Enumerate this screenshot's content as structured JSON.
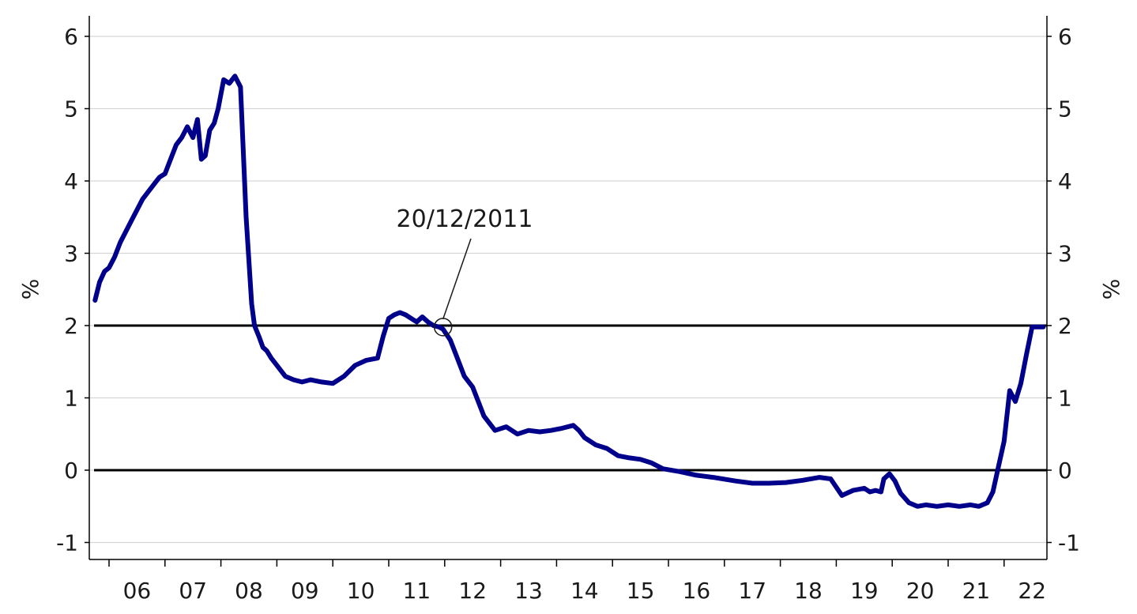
{
  "chart_data": {
    "type": "line",
    "xlabel": "",
    "ylabel_left": "%",
    "ylabel_right": "%",
    "ylim": [
      -1.2,
      6.2
    ],
    "yticks": [
      -1,
      0,
      1,
      2,
      3,
      4,
      5,
      6
    ],
    "xlim": [
      2005.65,
      2022.85
    ],
    "x_tick_labels": [
      "06",
      "07",
      "08",
      "09",
      "10",
      "11",
      "12",
      "13",
      "14",
      "15",
      "16",
      "17",
      "18",
      "19",
      "20",
      "21",
      "22"
    ],
    "grid": true,
    "reference_lines": [
      0,
      2
    ],
    "line_color": "#00008b",
    "annotation": {
      "label": "20/12/2011",
      "x": 2011.97,
      "y": 1.98
    },
    "series": [
      {
        "x": [
          2005.75,
          2005.83,
          2005.92,
          2006.0,
          2006.1,
          2006.2,
          2006.3,
          2006.4,
          2006.5,
          2006.6,
          2006.7,
          2006.8,
          2006.9,
          2007.0,
          2007.1,
          2007.2,
          2007.3,
          2007.4,
          2007.5,
          2007.58,
          2007.65,
          2007.72,
          2007.8,
          2007.88,
          2007.95,
          2008.05,
          2008.15,
          2008.25,
          2008.35,
          2008.45,
          2008.55,
          2008.6,
          2008.68,
          2008.75,
          2008.82,
          2008.9,
          2009.0,
          2009.15,
          2009.3,
          2009.45,
          2009.6,
          2009.8,
          2010.0,
          2010.2,
          2010.4,
          2010.6,
          2010.8,
          2010.9,
          2011.0,
          2011.1,
          2011.2,
          2011.3,
          2011.4,
          2011.5,
          2011.6,
          2011.7,
          2011.8,
          2011.9,
          2011.97,
          2012.1,
          2012.2,
          2012.35,
          2012.5,
          2012.7,
          2012.9,
          2013.1,
          2013.3,
          2013.5,
          2013.7,
          2013.9,
          2014.1,
          2014.3,
          2014.4,
          2014.5,
          2014.7,
          2014.9,
          2015.1,
          2015.3,
          2015.5,
          2015.7,
          2015.9,
          2016.2,
          2016.5,
          2016.8,
          2017.2,
          2017.5,
          2017.8,
          2018.1,
          2018.4,
          2018.7,
          2018.9,
          2019.1,
          2019.3,
          2019.5,
          2019.6,
          2019.7,
          2019.8,
          2019.85,
          2019.95,
          2020.05,
          2020.15,
          2020.3,
          2020.45,
          2020.6,
          2020.8,
          2021.0,
          2021.2,
          2021.4,
          2021.55,
          2021.7,
          2021.8,
          2021.9,
          2022.0,
          2022.1,
          2022.2,
          2022.3,
          2022.4,
          2022.5,
          2022.6,
          2022.7
        ],
        "y": [
          2.35,
          2.6,
          2.75,
          2.8,
          2.95,
          3.15,
          3.3,
          3.45,
          3.6,
          3.75,
          3.85,
          3.95,
          4.05,
          4.1,
          4.3,
          4.5,
          4.6,
          4.75,
          4.6,
          4.85,
          4.3,
          4.35,
          4.7,
          4.8,
          5.0,
          5.4,
          5.35,
          5.45,
          5.3,
          3.5,
          2.3,
          2.0,
          1.85,
          1.7,
          1.65,
          1.55,
          1.45,
          1.3,
          1.25,
          1.22,
          1.25,
          1.22,
          1.2,
          1.3,
          1.45,
          1.52,
          1.55,
          1.85,
          2.1,
          2.15,
          2.18,
          2.15,
          2.1,
          2.05,
          2.12,
          2.05,
          2.0,
          1.98,
          1.95,
          1.8,
          1.6,
          1.3,
          1.15,
          0.75,
          0.55,
          0.6,
          0.5,
          0.55,
          0.53,
          0.55,
          0.58,
          0.62,
          0.55,
          0.45,
          0.35,
          0.3,
          0.2,
          0.17,
          0.15,
          0.1,
          0.02,
          -0.02,
          -0.07,
          -0.1,
          -0.15,
          -0.18,
          -0.18,
          -0.17,
          -0.14,
          -0.1,
          -0.12,
          -0.35,
          -0.28,
          -0.25,
          -0.3,
          -0.28,
          -0.3,
          -0.12,
          -0.05,
          -0.15,
          -0.32,
          -0.45,
          -0.5,
          -0.48,
          -0.5,
          -0.48,
          -0.5,
          -0.48,
          -0.5,
          -0.45,
          -0.3,
          0.05,
          0.4,
          1.1,
          0.95,
          1.2,
          1.6,
          1.98,
          1.98,
          1.98
        ]
      }
    ]
  }
}
